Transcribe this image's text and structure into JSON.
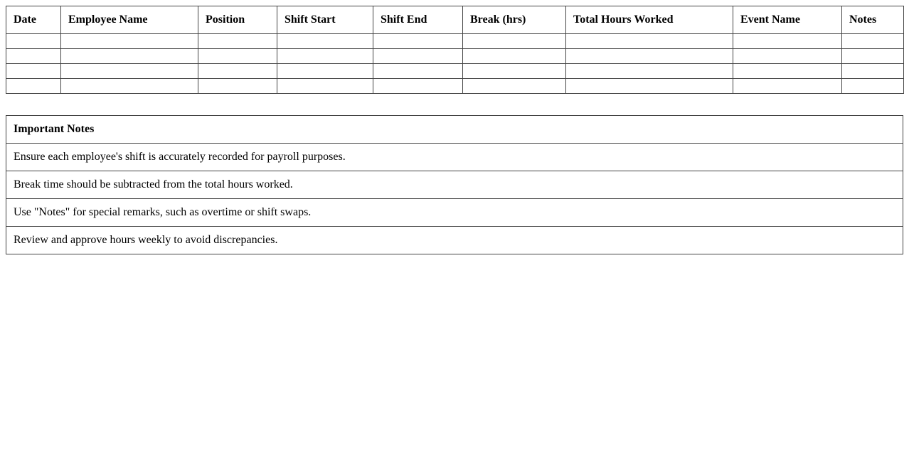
{
  "shift_table": {
    "headers": [
      "Date",
      "Employee Name",
      "Position",
      "Shift Start",
      "Shift End",
      "Break (hrs)",
      "Total Hours Worked",
      "Event Name",
      "Notes"
    ],
    "rows": [
      [
        "",
        "",
        "",
        "",
        "",
        "",
        "",
        "",
        ""
      ],
      [
        "",
        "",
        "",
        "",
        "",
        "",
        "",
        "",
        ""
      ],
      [
        "",
        "",
        "",
        "",
        "",
        "",
        "",
        "",
        ""
      ],
      [
        "",
        "",
        "",
        "",
        "",
        "",
        "",
        "",
        ""
      ]
    ]
  },
  "notes_table": {
    "title": "Important Notes",
    "items": [
      "Ensure each employee's shift is accurately recorded for payroll purposes.",
      "Break time should be subtracted from the total hours worked.",
      "Use \"Notes\" for special remarks, such as overtime or shift swaps.",
      "Review and approve hours weekly to avoid discrepancies."
    ]
  }
}
